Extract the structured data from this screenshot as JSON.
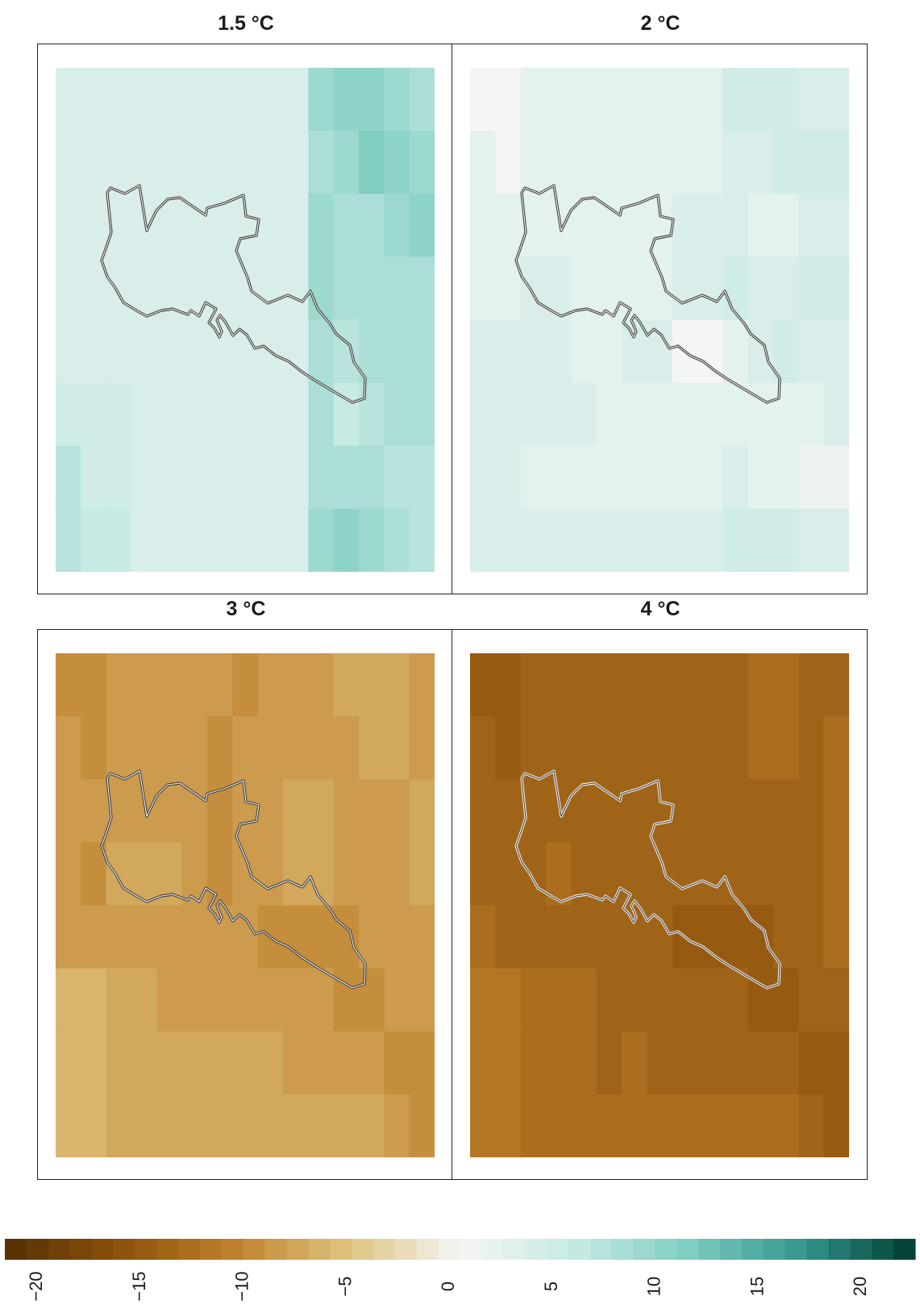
{
  "panels": [
    {
      "title": "1.5 °C",
      "grid": [
        [
          3,
          3,
          3,
          3,
          3,
          3,
          3,
          3,
          3,
          3,
          8,
          9,
          9,
          8,
          7
        ],
        [
          3,
          3,
          3,
          3,
          3,
          3,
          3,
          3,
          3,
          3,
          7,
          8,
          10,
          9,
          8
        ],
        [
          3,
          3,
          3,
          3,
          3,
          3,
          3,
          3,
          3,
          3,
          8,
          7,
          7,
          8,
          9
        ],
        [
          3,
          3,
          3,
          3,
          3,
          3,
          3,
          3,
          3,
          3,
          8,
          7,
          7,
          7,
          7
        ],
        [
          3,
          3,
          3,
          3,
          3,
          3,
          3,
          3,
          3,
          3,
          7,
          6,
          7,
          7,
          7
        ],
        [
          4,
          4,
          4,
          3,
          3,
          3,
          3,
          3,
          3,
          3,
          7,
          5,
          6,
          7,
          7
        ],
        [
          6,
          4,
          4,
          3,
          3,
          3,
          3,
          3,
          3,
          3,
          7,
          7,
          7,
          6,
          6
        ],
        [
          6,
          5,
          5,
          3,
          3,
          3,
          3,
          3,
          3,
          3,
          8,
          9,
          8,
          7,
          6
        ]
      ]
    },
    {
      "title": "2 °C",
      "grid": [
        [
          0,
          0,
          2,
          2,
          2,
          2,
          2,
          2,
          2,
          2,
          4,
          4,
          4,
          3,
          3
        ],
        [
          2,
          0,
          2,
          2,
          2,
          2,
          2,
          2,
          2,
          2,
          3,
          3,
          4,
          4,
          4
        ],
        [
          2,
          2,
          2,
          2,
          2,
          2,
          2,
          2,
          3,
          3,
          3,
          2,
          2,
          3,
          3
        ],
        [
          2,
          2,
          3,
          3,
          2,
          2,
          2,
          2,
          3,
          3,
          4,
          3,
          3,
          4,
          4
        ],
        [
          3,
          3,
          3,
          3,
          2,
          2,
          3,
          3,
          0,
          0,
          2,
          3,
          4,
          3,
          3
        ],
        [
          3,
          3,
          3,
          3,
          3,
          2,
          2,
          2,
          2,
          2,
          2,
          2,
          2,
          2,
          3
        ],
        [
          3,
          3,
          2,
          2,
          2,
          2,
          2,
          2,
          2,
          2,
          3,
          2,
          2,
          1,
          1
        ],
        [
          3,
          3,
          3,
          3,
          3,
          3,
          3,
          3,
          3,
          3,
          4,
          4,
          4,
          3,
          3
        ]
      ]
    },
    {
      "title": "3 °C",
      "grid": [
        [
          -9,
          -9,
          -8,
          -8,
          -8,
          -8,
          -8,
          -9,
          -8,
          -8,
          -8,
          -7,
          -7,
          -7,
          -8
        ],
        [
          -8,
          -9,
          -8,
          -8,
          -8,
          -8,
          -9,
          -8,
          -8,
          -8,
          -8,
          -8,
          -7,
          -7,
          -8
        ],
        [
          -8,
          -8,
          -8,
          -8,
          -8,
          -8,
          -9,
          -8,
          -8,
          -7,
          -7,
          -8,
          -8,
          -8,
          -7
        ],
        [
          -8,
          -9,
          -7,
          -7,
          -7,
          -8,
          -9,
          -8,
          -8,
          -7,
          -7,
          -8,
          -8,
          -8,
          -7
        ],
        [
          -8,
          -8,
          -8,
          -8,
          -8,
          -8,
          -8,
          -8,
          -9,
          -9,
          -9,
          -9,
          -8,
          -8,
          -8
        ],
        [
          -6,
          -6,
          -7,
          -7,
          -8,
          -8,
          -8,
          -8,
          -8,
          -8,
          -8,
          -9,
          -9,
          -8,
          -8
        ],
        [
          -6,
          -6,
          -7,
          -7,
          -7,
          -7,
          -7,
          -7,
          -7,
          -8,
          -8,
          -8,
          -8,
          -9,
          -9
        ],
        [
          -6,
          -6,
          -7,
          -7,
          -7,
          -7,
          -7,
          -7,
          -7,
          -7,
          -7,
          -7,
          -7,
          -8,
          -9
        ]
      ]
    },
    {
      "title": "4 °C",
      "grid": [
        [
          -14,
          -14,
          -13,
          -13,
          -13,
          -13,
          -13,
          -13,
          -13,
          -13,
          -13,
          -12,
          -12,
          -13,
          -13
        ],
        [
          -13,
          -14,
          -13,
          -13,
          -13,
          -13,
          -13,
          -13,
          -13,
          -13,
          -13,
          -12,
          -12,
          -13,
          -12
        ],
        [
          -13,
          -13,
          -13,
          -13,
          -13,
          -13,
          -13,
          -13,
          -13,
          -13,
          -13,
          -13,
          -13,
          -13,
          -12
        ],
        [
          -13,
          -13,
          -13,
          -12,
          -13,
          -13,
          -13,
          -13,
          -13,
          -13,
          -13,
          -13,
          -13,
          -13,
          -12
        ],
        [
          -12,
          -13,
          -13,
          -13,
          -13,
          -13,
          -13,
          -13,
          -14,
          -14,
          -14,
          -14,
          -13,
          -13,
          -12
        ],
        [
          -11,
          -11,
          -12,
          -12,
          -12,
          -13,
          -13,
          -13,
          -13,
          -13,
          -13,
          -14,
          -14,
          -13,
          -13
        ],
        [
          -11,
          -11,
          -12,
          -12,
          -12,
          -13,
          -12,
          -13,
          -13,
          -13,
          -13,
          -13,
          -13,
          -14,
          -14
        ],
        [
          -11,
          -11,
          -12,
          -12,
          -12,
          -12,
          -12,
          -12,
          -12,
          -12,
          -12,
          -12,
          -12,
          -13,
          -14
        ]
      ]
    }
  ],
  "legend": {
    "min": -20,
    "max": 20,
    "ticks": [
      "−20",
      "−15",
      "−10",
      "−5",
      "0",
      "5",
      "10",
      "15",
      "20"
    ],
    "colors": [
      "#543005",
      "#8c510a",
      "#bf812d",
      "#dfc27d",
      "#f5f5f5",
      "#c7eae5",
      "#80cdc1",
      "#35978f",
      "#003c30"
    ]
  },
  "outline_colors": [
    "#333333",
    "#333333",
    "#333333",
    "#ffffff"
  ]
}
